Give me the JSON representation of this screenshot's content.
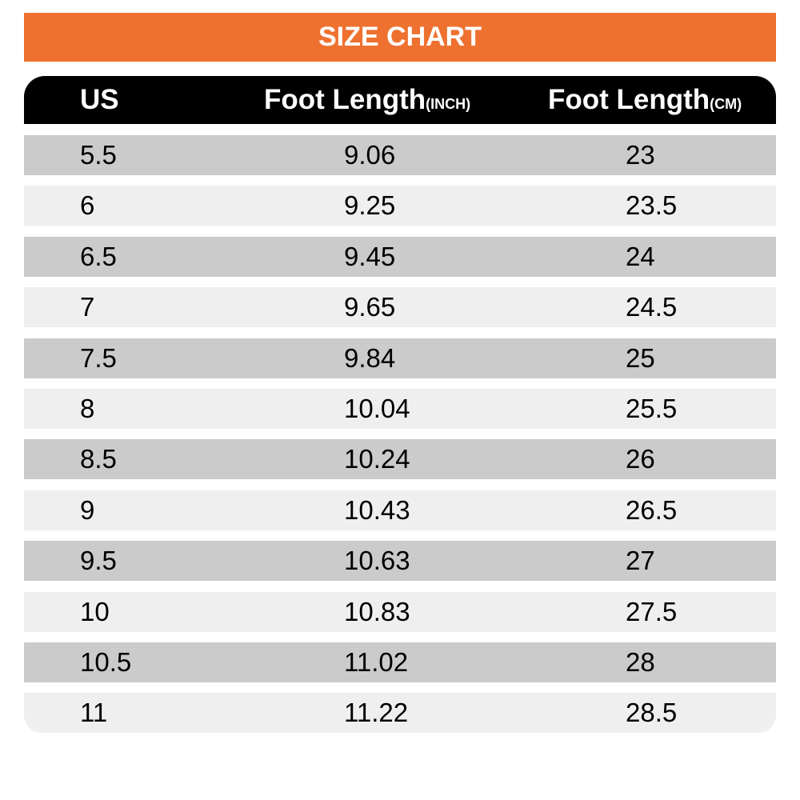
{
  "title": "SIZE CHART",
  "header": [
    {
      "label": "US"
    },
    {
      "label": "Foot Length",
      "unit": "(INCH)"
    },
    {
      "label": "Foot Length",
      "unit": "(CM)"
    }
  ],
  "rows": [
    [
      "5.5",
      "9.06",
      "23"
    ],
    [
      "6",
      "9.25",
      "23.5"
    ],
    [
      "6.5",
      "9.45",
      "24"
    ],
    [
      "7",
      "9.65",
      "24.5"
    ],
    [
      "7.5",
      "9.84",
      "25"
    ],
    [
      "8",
      "10.04",
      "25.5"
    ],
    [
      "8.5",
      "10.24",
      "26"
    ],
    [
      "9",
      "10.43",
      "26.5"
    ],
    [
      "9.5",
      "10.63",
      "27"
    ],
    [
      "10",
      "10.83",
      "27.5"
    ],
    [
      "10.5",
      "11.02",
      "28"
    ],
    [
      "11",
      "11.22",
      "28.5"
    ]
  ]
}
